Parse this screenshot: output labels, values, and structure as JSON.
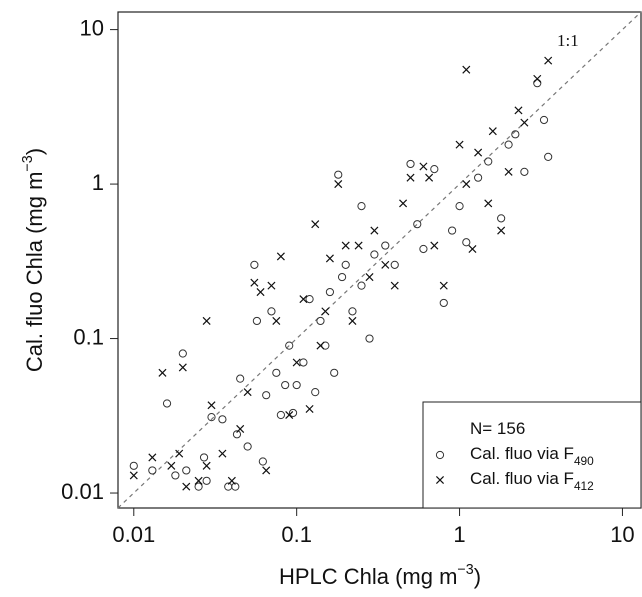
{
  "chart_data": {
    "type": "scatter",
    "xlabel": "HPLC Chla (mg m−3)",
    "ylabel": "Cal. fluo Chla (mg m−3)",
    "annotation": "1:1",
    "legend_title": "N= 156",
    "legend": "lower right",
    "xscale": "log",
    "yscale": "log",
    "xlim": [
      0.008,
      13
    ],
    "ylim": [
      0.008,
      13
    ],
    "xticks": [
      0.01,
      0.1,
      1,
      10
    ],
    "yticks": [
      0.01,
      0.1,
      1,
      10
    ],
    "reference_line": "identity",
    "series": [
      {
        "name": "Cal. fluo via F490",
        "marker": "circle",
        "color": "#333333",
        "x": [
          0.01,
          0.013,
          0.016,
          0.018,
          0.02,
          0.021,
          0.025,
          0.027,
          0.028,
          0.03,
          0.035,
          0.038,
          0.043,
          0.045,
          0.05,
          0.055,
          0.057,
          0.062,
          0.065,
          0.07,
          0.075,
          0.08,
          0.085,
          0.09,
          0.095,
          0.1,
          0.11,
          0.12,
          0.13,
          0.14,
          0.15,
          0.16,
          0.17,
          0.18,
          0.19,
          0.2,
          0.22,
          0.25,
          0.28,
          0.3,
          0.35,
          0.4,
          0.5,
          0.55,
          0.6,
          0.7,
          0.8,
          0.9,
          1.0,
          1.1,
          1.3,
          1.5,
          1.8,
          2.0,
          2.2,
          2.5,
          3.0,
          3.3,
          3.5,
          0.042,
          0.25
        ],
        "y": [
          0.015,
          0.014,
          0.038,
          0.013,
          0.08,
          0.014,
          0.011,
          0.017,
          0.012,
          0.031,
          0.03,
          0.011,
          0.024,
          0.055,
          0.02,
          0.3,
          0.13,
          0.016,
          0.043,
          0.15,
          0.06,
          0.032,
          0.05,
          0.09,
          0.033,
          0.05,
          0.07,
          0.18,
          0.045,
          0.13,
          0.09,
          0.2,
          0.06,
          1.15,
          0.25,
          0.3,
          0.15,
          0.72,
          0.1,
          0.35,
          0.4,
          0.3,
          1.35,
          0.55,
          0.38,
          1.25,
          0.17,
          0.5,
          0.72,
          0.42,
          1.1,
          1.4,
          0.6,
          1.8,
          2.1,
          1.2,
          4.5,
          2.6,
          1.5,
          0.011,
          0.22
        ]
      },
      {
        "name": "Cal. fluo via F412",
        "marker": "cross",
        "color": "#111111",
        "x": [
          0.01,
          0.013,
          0.015,
          0.017,
          0.019,
          0.02,
          0.021,
          0.025,
          0.028,
          0.028,
          0.03,
          0.035,
          0.04,
          0.045,
          0.05,
          0.055,
          0.06,
          0.065,
          0.07,
          0.075,
          0.08,
          0.09,
          0.1,
          0.11,
          0.12,
          0.13,
          0.14,
          0.16,
          0.18,
          0.2,
          0.22,
          0.24,
          0.28,
          0.3,
          0.35,
          0.4,
          0.45,
          0.5,
          0.6,
          0.7,
          0.8,
          1.0,
          1.1,
          1.2,
          1.3,
          1.5,
          1.6,
          1.8,
          2.0,
          2.3,
          2.5,
          3.0,
          3.5,
          1.1,
          0.65,
          0.15
        ],
        "y": [
          0.013,
          0.017,
          0.06,
          0.015,
          0.018,
          0.065,
          0.011,
          0.012,
          0.13,
          0.015,
          0.037,
          0.018,
          0.012,
          0.026,
          0.045,
          0.23,
          0.2,
          0.014,
          0.22,
          0.13,
          0.34,
          0.032,
          0.07,
          0.18,
          0.035,
          0.55,
          0.09,
          0.33,
          1.0,
          0.4,
          0.13,
          0.4,
          0.25,
          0.5,
          0.3,
          0.22,
          0.75,
          1.1,
          1.3,
          0.4,
          0.22,
          1.8,
          1.0,
          0.38,
          1.6,
          0.75,
          2.2,
          0.5,
          1.2,
          3.0,
          2.5,
          4.8,
          6.3,
          5.5,
          1.1,
          0.15
        ]
      }
    ]
  }
}
